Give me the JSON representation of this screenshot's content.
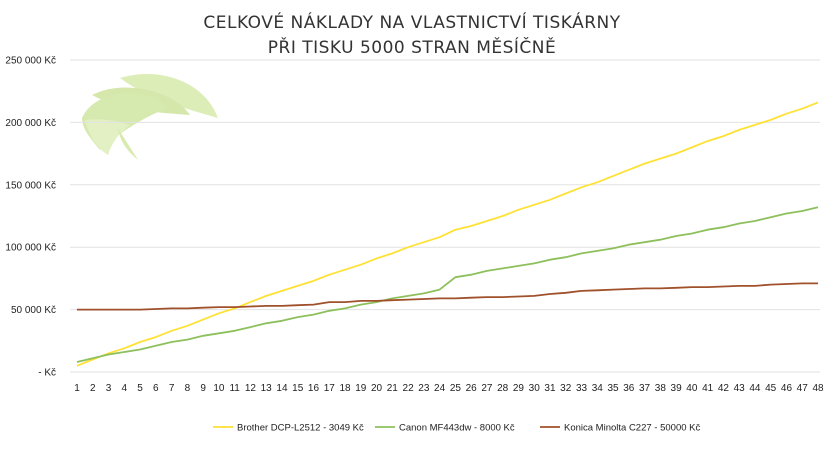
{
  "chart_data": {
    "type": "line",
    "title_line1": "CELKOVÉ NÁKLADY NA VLASTNICTVÍ TISKÁRNY",
    "title_line2": "PŘI TISKU 5000 STRAN MĚSÍČNĚ",
    "xlabel": "",
    "ylabel": "",
    "ylim": [
      0,
      250000
    ],
    "y_ticks": [
      0,
      50000,
      100000,
      150000,
      200000,
      250000
    ],
    "y_tick_labels": [
      "-  Kč",
      "50 000 Kč",
      "100 000 Kč",
      "150 000 Kč",
      "200 000 Kč",
      "250 000 Kč"
    ],
    "grid": true,
    "legend_position": "bottom",
    "x": [
      1,
      2,
      3,
      4,
      5,
      6,
      7,
      8,
      9,
      10,
      11,
      12,
      13,
      14,
      15,
      16,
      17,
      18,
      19,
      20,
      21,
      22,
      23,
      24,
      25,
      26,
      27,
      28,
      29,
      30,
      31,
      32,
      33,
      34,
      35,
      36,
      37,
      38,
      39,
      40,
      41,
      42,
      43,
      44,
      45,
      46,
      47,
      48
    ],
    "series": [
      {
        "name": "Brother DCP-L2512 - 3049 Kč",
        "color": "#FFE135",
        "values": [
          5000,
          10000,
          15000,
          19000,
          24000,
          28000,
          33000,
          37000,
          42000,
          47000,
          51000,
          56000,
          61000,
          65000,
          69000,
          73000,
          78000,
          82000,
          86000,
          91000,
          95000,
          100000,
          104000,
          108000,
          114000,
          117000,
          121000,
          125000,
          130000,
          134000,
          138000,
          143000,
          148000,
          152000,
          157000,
          162000,
          167000,
          171000,
          175000,
          180000,
          185000,
          189000,
          194000,
          198000,
          202000,
          207000,
          211000,
          216000
        ]
      },
      {
        "name": "Canon MF443dw - 8000 Kč",
        "color": "#8DC05C",
        "values": [
          8000,
          11000,
          14000,
          16000,
          18000,
          21000,
          24000,
          26000,
          29000,
          31000,
          33000,
          36000,
          39000,
          41000,
          44000,
          46000,
          49000,
          51000,
          54000,
          56000,
          59000,
          61000,
          63000,
          66000,
          76000,
          78000,
          81000,
          83000,
          85000,
          87000,
          90000,
          92000,
          95000,
          97000,
          99000,
          102000,
          104000,
          106000,
          109000,
          111000,
          114000,
          116000,
          119000,
          121000,
          124000,
          127000,
          129000,
          132000
        ]
      },
      {
        "name": "Konica Minolta C227 - 50000 Kč",
        "color": "#A0502A",
        "values": [
          50000,
          50000,
          50000,
          50000,
          50000,
          50500,
          51000,
          51000,
          51500,
          52000,
          52000,
          52500,
          53000,
          53000,
          53500,
          54000,
          56000,
          56000,
          57000,
          57000,
          57500,
          58000,
          58500,
          59000,
          59000,
          59500,
          60000,
          60000,
          60500,
          61000,
          62500,
          63500,
          65000,
          65500,
          66000,
          66500,
          67000,
          67000,
          67500,
          68000,
          68000,
          68500,
          69000,
          69000,
          70000,
          70500,
          71000,
          71000
        ]
      }
    ]
  },
  "colors": {
    "leaf_light": "#d7e9a8",
    "leaf_mid": "#c2dc86",
    "grid": "#e2e2e2"
  }
}
